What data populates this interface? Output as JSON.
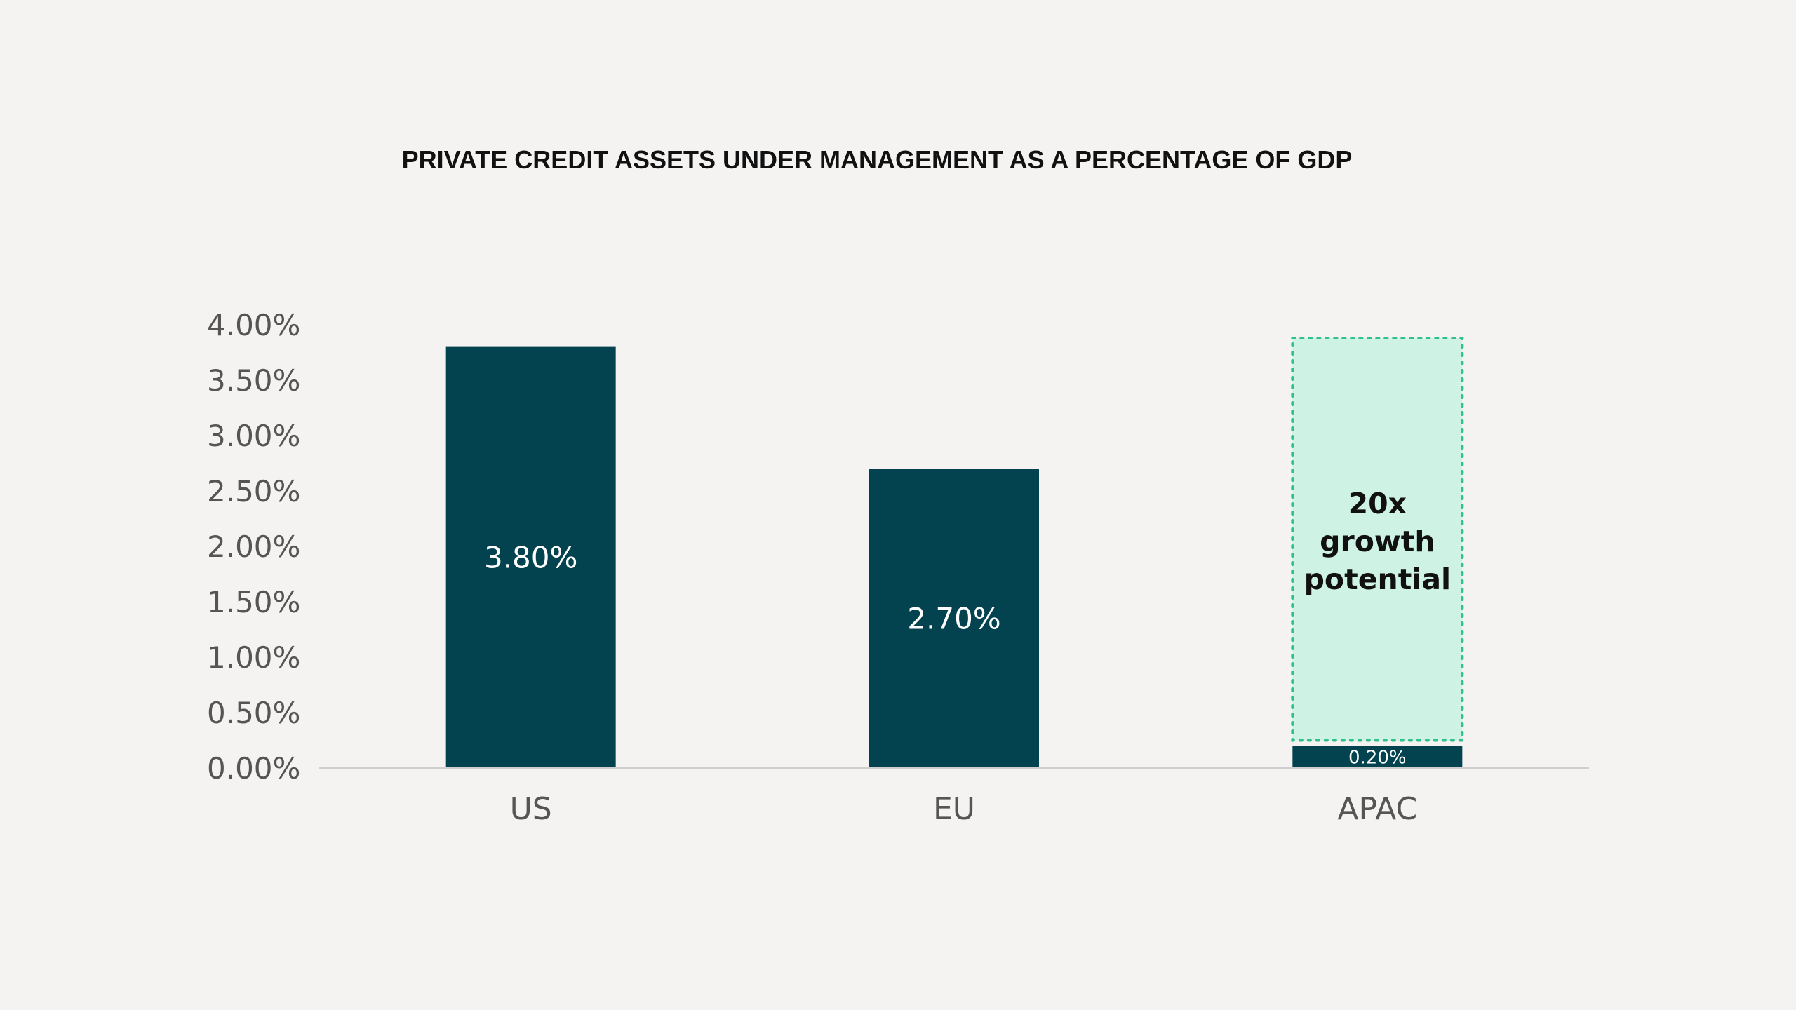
{
  "chart_data": {
    "type": "bar",
    "title": "PRIVATE CREDIT ASSETS UNDER MANAGEMENT AS A PERCENTAGE OF GDP",
    "xlabel": "",
    "ylabel": "",
    "categories": [
      "US",
      "EU",
      "APAC"
    ],
    "values": [
      3.8,
      2.7,
      0.2
    ],
    "data_labels": [
      "3.80%",
      "2.70%",
      "0.20%"
    ],
    "ylim": [
      0,
      4
    ],
    "yticks": [
      0,
      0.5,
      1,
      1.5,
      2,
      2.5,
      3,
      3.5,
      4
    ],
    "ytick_labels": [
      "0.00%",
      "0.50%",
      "1.00%",
      "1.50%",
      "2.00%",
      "2.50%",
      "3.00%",
      "3.50%",
      "4.00%"
    ],
    "grid": false,
    "legend": "none",
    "annotation": {
      "category": "APAC",
      "range": [
        0.25,
        3.88
      ],
      "lines": [
        "20x",
        "growth",
        "potential"
      ]
    },
    "colors": {
      "bar": "#02434f",
      "annotation_fill": "#cef3e5",
      "annotation_border": "#2fbf92",
      "axis_line": "#cfcfcf"
    }
  }
}
